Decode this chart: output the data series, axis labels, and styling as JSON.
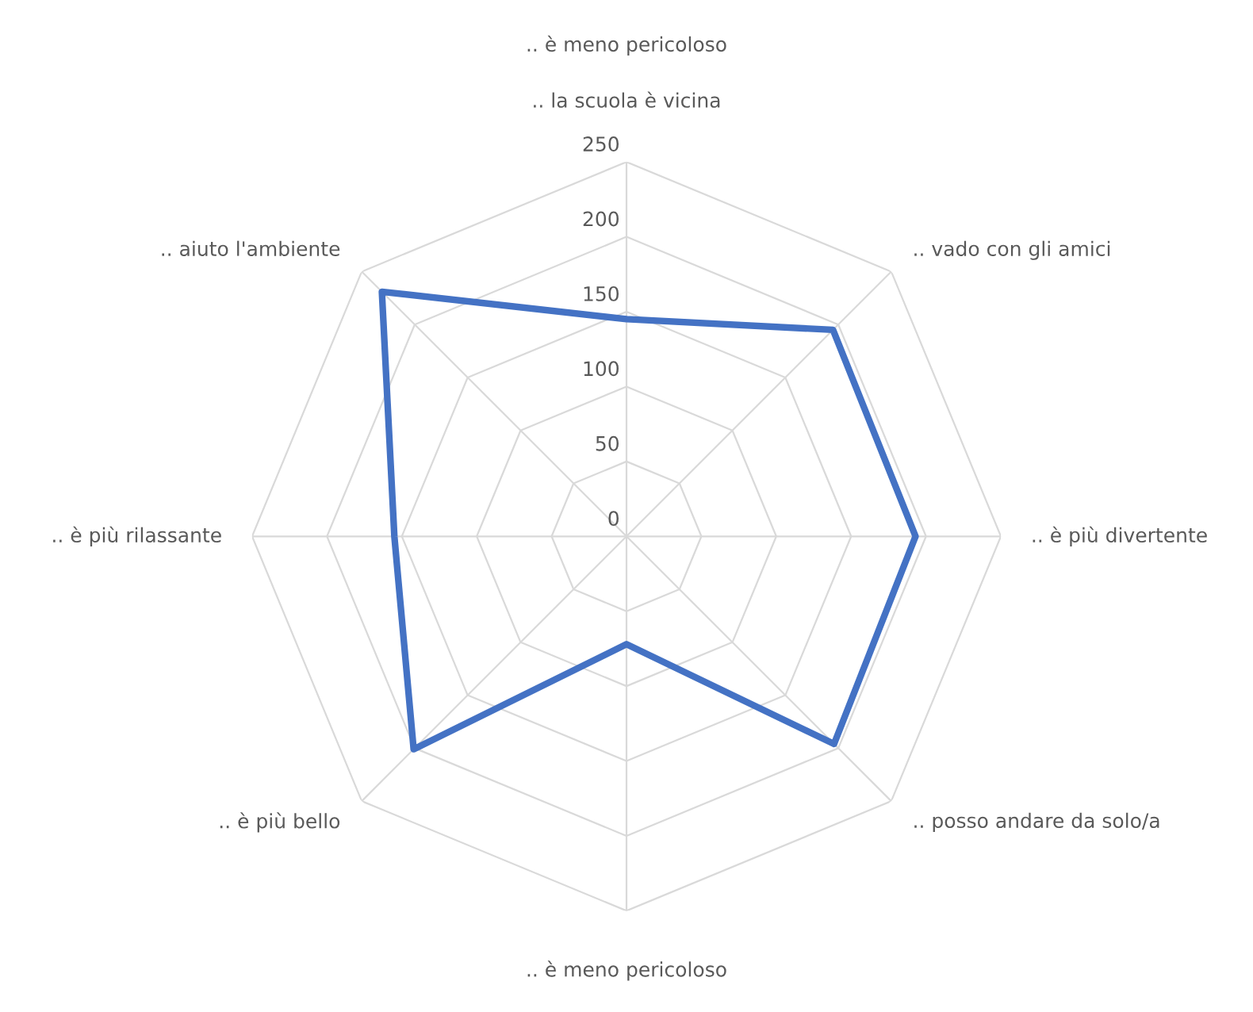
{
  "chart_data": {
    "type": "radar",
    "title": ".. è meno pericoloso",
    "categories": [
      ".. la scuola è vicina",
      ".. vado con gli amici",
      ".. è più divertente",
      ".. posso andare da solo/a",
      ".. è meno pericoloso",
      ".. è più bello",
      ".. è più rilassante",
      ".. aiuto l'ambiente"
    ],
    "series": [
      {
        "color": "#4472c4",
        "values": [
          145,
          195,
          193,
          196,
          72,
          201,
          155,
          231
        ]
      }
    ],
    "ylim": [
      0,
      250
    ],
    "yticks": [
      0,
      50,
      100,
      150,
      200,
      250
    ],
    "grid": true,
    "marker": "none",
    "line_style": "solid"
  }
}
